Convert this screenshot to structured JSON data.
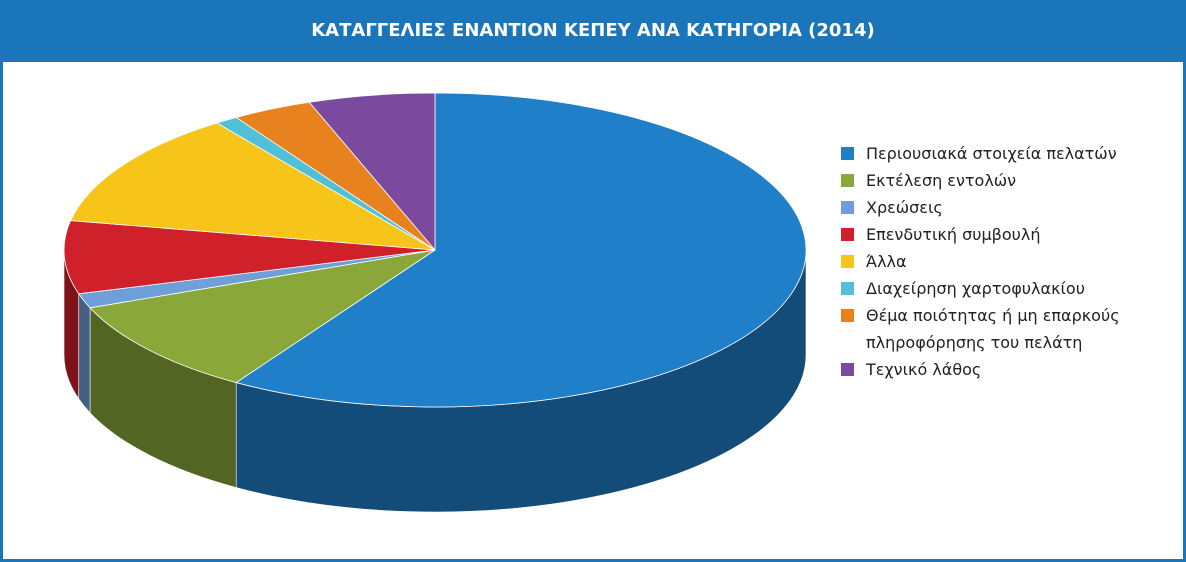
{
  "chart_data": {
    "type": "pie",
    "title": "ΚΑΤΑΓΓΕΛΙΕΣ ΕΝΑΝΤΙΟΝ ΚΕΠΕΥ ΑΝΑ ΚΑΤΗΓΟΡΙΑ (2014)",
    "categories": [
      "Περιουσιακά στοιχεία πελατών",
      "Εκτέλεση εντολών",
      "Χρεώσεις",
      "Επενδυτική συμβουλή",
      "Άλλα",
      "Διαχείρηση χαρτοφυλακίου",
      "Θέμα ποιότητας ή μη επαρκούς πληροφόρησης του πελάτη",
      "Τεχνικό λάθος"
    ],
    "values": [
      59,
      10,
      1.5,
      7.5,
      12,
      1,
      3.5,
      5.5
    ],
    "colors": [
      "#1f7fc8",
      "#8aa83a",
      "#6f9fd8",
      "#d0202a",
      "#f7c51a",
      "#4fc0d8",
      "#e8821e",
      "#7b4a9e"
    ]
  }
}
